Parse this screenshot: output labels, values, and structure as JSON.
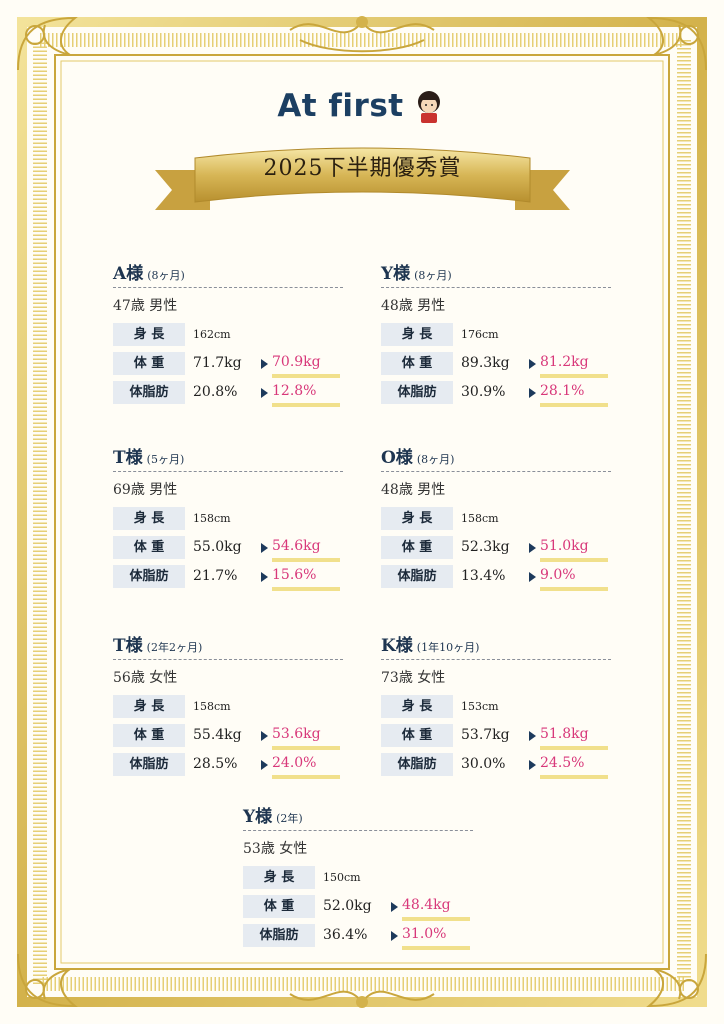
{
  "header": {
    "logo": "At first",
    "award_title": "2025下半期優秀賞"
  },
  "labels": {
    "height": "身 長",
    "weight": "体 重",
    "fat": "体脂肪"
  },
  "cards": [
    {
      "name": "A様",
      "period": "(8ヶ月)",
      "info": "47歳 男性",
      "height": "162cm",
      "weight_before": "71.7kg",
      "weight_after": "70.9kg",
      "fat_before": "20.8%",
      "fat_after": "12.8%"
    },
    {
      "name": "Y様",
      "period": "(8ヶ月)",
      "info": "48歳 男性",
      "height": "176cm",
      "weight_before": "89.3kg",
      "weight_after": "81.2kg",
      "fat_before": "30.9%",
      "fat_after": "28.1%"
    },
    {
      "name": "T様",
      "period": "(5ヶ月)",
      "info": "69歳 男性",
      "height": "158cm",
      "weight_before": "55.0kg",
      "weight_after": "54.6kg",
      "fat_before": "21.7%",
      "fat_after": "15.6%"
    },
    {
      "name": "O様",
      "period": "(8ヶ月)",
      "info": "48歳 男性",
      "height": "158cm",
      "weight_before": "52.3kg",
      "weight_after": "51.0kg",
      "fat_before": "13.4%",
      "fat_after": "9.0%"
    },
    {
      "name": "T様",
      "period": "(2年2ヶ月)",
      "info": "56歳 女性",
      "height": "158cm",
      "weight_before": "55.4kg",
      "weight_after": "53.6kg",
      "fat_before": "28.5%",
      "fat_after": "24.0%"
    },
    {
      "name": "K様",
      "period": "(1年10ヶ月)",
      "info": "73歳 女性",
      "height": "153cm",
      "weight_before": "53.7kg",
      "weight_after": "51.8kg",
      "fat_before": "30.0%",
      "fat_after": "24.5%"
    },
    {
      "name": "Y様",
      "period": "(2年)",
      "info": "53歳 女性",
      "height": "150cm",
      "weight_before": "52.0kg",
      "weight_after": "48.4kg",
      "fat_before": "36.4%",
      "fat_after": "31.0%"
    }
  ],
  "colors": {
    "gold": "#d9bd54",
    "navy": "#1c3f62",
    "highlight": "#d8387a",
    "underline": "#f1e08c"
  }
}
